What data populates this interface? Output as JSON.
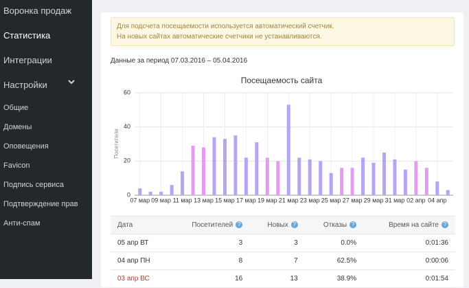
{
  "sidebar": {
    "items": [
      "Воронка продаж",
      "Статистика",
      "Интеграции",
      "Настройки"
    ],
    "active": 1,
    "subitems": [
      "Общие",
      "Домены",
      "Оповещения",
      "Favicon",
      "Подпись сервиса",
      "Подтверждение прав",
      "Анти-спам"
    ]
  },
  "notice": [
    "Для подсчета посещаемости используется автоматический счетчик.",
    "На новых сайтах автоматические счетчики не устанавливаются."
  ],
  "period": "Данные за период 07.03.2016 – 05.04.2016",
  "chart_data": {
    "type": "bar",
    "title": "Посещаемость сайта",
    "y_label": "Посетители",
    "categories": [
      "07 мар",
      null,
      "09 мар",
      null,
      "11 мар",
      null,
      "13 мар",
      null,
      "15 мар",
      null,
      "17 мар",
      null,
      "19 мар",
      null,
      "21 мар",
      null,
      "23 мар",
      null,
      "25 мар",
      null,
      "27 мар",
      null,
      "29 мар",
      null,
      "31 мар",
      null,
      "02 апр",
      null,
      "04 апр",
      null
    ],
    "values": [
      4,
      2,
      2,
      6,
      14,
      29,
      28,
      34,
      33,
      35,
      22,
      31,
      22,
      20,
      53,
      22,
      21,
      20,
      13,
      16,
      16,
      22,
      19,
      25,
      21,
      15,
      20,
      16,
      8,
      3
    ],
    "colors": [
      "#b7a4f2",
      "#b7a4f2",
      "#b7a4f2",
      "#b7a4f2",
      "#b7a4f2",
      "#e39cf0",
      "#e39cf0",
      "#b7a4f2",
      "#b7a4f2",
      "#b7a4f2",
      "#b7a4f2",
      "#b7a4f2",
      "#e39cf0",
      "#e39cf0",
      "#b7a4f2",
      "#b7a4f2",
      "#b7a4f2",
      "#b7a4f2",
      "#b7a4f2",
      "#e39cf0",
      "#e39cf0",
      "#b7a4f2",
      "#b7a4f2",
      "#b7a4f2",
      "#b7a4f2",
      "#b7a4f2",
      "#e39cf0",
      "#e39cf0",
      "#b7a4f2",
      "#b7a4f2"
    ],
    "ylim": [
      0,
      60
    ],
    "yticks": [
      0,
      20,
      40,
      60
    ],
    "grid": true
  },
  "table": {
    "header": [
      "Дата",
      "Посетителей",
      "Новых",
      "Отказы",
      "Время на сайте"
    ],
    "rows": [
      [
        "05 апр ВТ",
        "3",
        "3",
        "0.0%",
        "0:01:36"
      ],
      [
        "04 апр ПН",
        "8",
        "7",
        "62.5%",
        "0:00:06"
      ],
      [
        "03 апр ВС",
        "16",
        "13",
        "38.9%",
        "0:01:54"
      ]
    ],
    "holiday_row": 2
  }
}
